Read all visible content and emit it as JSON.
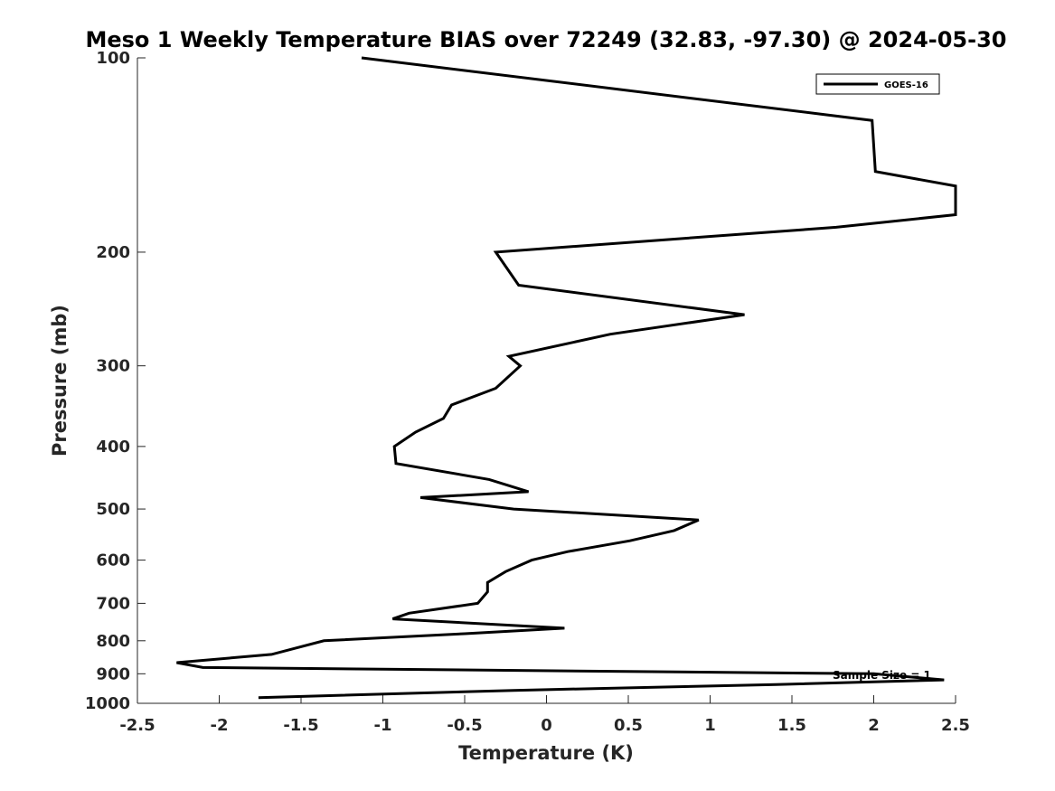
{
  "chart_data": {
    "type": "line",
    "title": "Meso 1 Weekly Temperature BIAS over 72249 (32.83, -97.30) @ 2024-05-30",
    "xlabel": "Temperature (K)",
    "ylabel": "Pressure (mb)",
    "xlim": [
      -2.5,
      2.5
    ],
    "ylim": [
      1000,
      100
    ],
    "y_scale": "log",
    "y_reversed": true,
    "grid": false,
    "legend_position": "top-right",
    "x_ticks": [
      -2.5,
      -2,
      -1.5,
      -1,
      -0.5,
      0,
      0.5,
      1,
      1.5,
      2,
      2.5
    ],
    "x_tick_labels": [
      "-2.5",
      "-2",
      "-1.5",
      "-1",
      "-0.5",
      "0",
      "0.5",
      "1",
      "1.5",
      "2",
      "2.5"
    ],
    "y_ticks": [
      100,
      200,
      300,
      400,
      500,
      600,
      700,
      800,
      900,
      1000
    ],
    "y_tick_labels": [
      "100",
      "200",
      "300",
      "400",
      "500",
      "600",
      "700",
      "800",
      "900",
      "1000"
    ],
    "series": [
      {
        "name": "GOES-16",
        "color": "#000000",
        "points": [
          [
            -1.13,
            100
          ],
          [
            1.99,
            125
          ],
          [
            2.01,
            150
          ],
          [
            2.5,
            158
          ],
          [
            2.5,
            175
          ],
          [
            1.77,
            183
          ],
          [
            -0.31,
            200
          ],
          [
            -0.17,
            225
          ],
          [
            1.21,
            250
          ],
          [
            0.39,
            268
          ],
          [
            -0.23,
            290
          ],
          [
            -0.16,
            300
          ],
          [
            -0.31,
            325
          ],
          [
            -0.58,
            345
          ],
          [
            -0.63,
            362
          ],
          [
            -0.8,
            380
          ],
          [
            -0.93,
            400
          ],
          [
            -0.92,
            425
          ],
          [
            -0.35,
            450
          ],
          [
            -0.11,
            470
          ],
          [
            -0.77,
            480
          ],
          [
            -0.2,
            500
          ],
          [
            0.93,
            520
          ],
          [
            0.78,
            540
          ],
          [
            0.51,
            560
          ],
          [
            0.13,
            582
          ],
          [
            -0.09,
            600
          ],
          [
            -0.25,
            625
          ],
          [
            -0.36,
            650
          ],
          [
            -0.36,
            672
          ],
          [
            -0.42,
            700
          ],
          [
            -0.84,
            725
          ],
          [
            -0.94,
            740
          ],
          [
            0.11,
            765
          ],
          [
            -0.5,
            780
          ],
          [
            -1.36,
            800
          ],
          [
            -1.68,
            840
          ],
          [
            -2.26,
            865
          ],
          [
            -2.1,
            880
          ],
          [
            2.0,
            900
          ],
          [
            2.43,
            920
          ],
          [
            1.4,
            935
          ],
          [
            -0.2,
            955
          ],
          [
            -1.76,
            980
          ]
        ]
      }
    ],
    "annotation": "Sample Size = 1"
  }
}
